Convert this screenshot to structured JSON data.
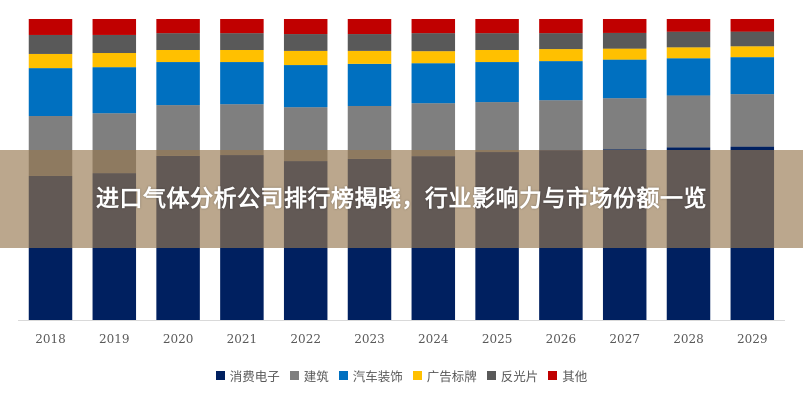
{
  "banner": {
    "title": "进口气体分析公司排行榜揭晓，行业影响力与市场份额一览"
  },
  "chart_data": {
    "type": "bar",
    "stacked": true,
    "normalized": true,
    "categories": [
      "2018",
      "2019",
      "2020",
      "2021",
      "2022",
      "2023",
      "2024",
      "2025",
      "2026",
      "2027",
      "2028",
      "2029"
    ],
    "ylim": [
      0,
      100
    ],
    "grid": false,
    "legend_position": "bottom",
    "series": [
      {
        "name": "消费电子",
        "color": "#002060",
        "values": [
          47.8,
          48.8,
          54.5,
          54.8,
          52.8,
          53.5,
          54.5,
          55.8,
          56.5,
          57.5,
          58.5,
          59.1
        ]
      },
      {
        "name": "建筑",
        "color": "#7f7f7f",
        "values": [
          19.9,
          19.9,
          16.9,
          16.9,
          17.9,
          17.6,
          17.6,
          16.6,
          16.6,
          17.3,
          17.6,
          17.9
        ]
      },
      {
        "name": "汽车装饰",
        "color": "#0070c0",
        "values": [
          15.9,
          15.3,
          14.3,
          14.0,
          14.0,
          14.0,
          13.3,
          13.3,
          13.0,
          13.0,
          12.6,
          12.6
        ]
      },
      {
        "name": "广告标牌",
        "color": "#ffc000",
        "values": [
          4.7,
          4.7,
          4.0,
          4.0,
          4.7,
          4.3,
          4.0,
          4.0,
          4.0,
          3.7,
          3.7,
          3.7
        ]
      },
      {
        "name": "反光片",
        "color": "#595959",
        "values": [
          6.3,
          6.0,
          5.6,
          5.6,
          5.6,
          5.6,
          6.0,
          5.6,
          5.3,
          5.3,
          5.3,
          5.0
        ]
      },
      {
        "name": "其他",
        "color": "#c00000",
        "values": [
          5.3,
          5.3,
          4.7,
          4.7,
          5.0,
          5.0,
          4.7,
          4.7,
          4.7,
          4.7,
          4.3,
          4.3
        ]
      }
    ]
  }
}
